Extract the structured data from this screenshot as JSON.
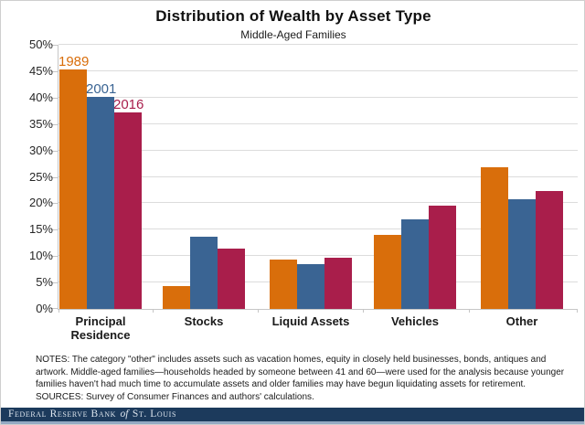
{
  "header": {
    "title": "Distribution of Wealth by Asset Type",
    "subtitle": "Middle-Aged Families"
  },
  "chart_data": {
    "type": "bar",
    "categories": [
      "Principal Residence",
      "Stocks",
      "Liquid Assets",
      "Vehicles",
      "Other"
    ],
    "series": [
      {
        "name": "1989",
        "color": "#d96e0b",
        "values": [
          45.4,
          4.4,
          9.3,
          14.1,
          26.8
        ]
      },
      {
        "name": "2001",
        "color": "#3a6493",
        "values": [
          40.1,
          13.6,
          8.4,
          17.0,
          20.8
        ]
      },
      {
        "name": "2016",
        "color": "#a91e4b",
        "values": [
          37.2,
          11.4,
          9.7,
          19.6,
          22.3
        ]
      }
    ],
    "title": "Distribution of Wealth by Asset Type",
    "subtitle": "Middle-Aged Families",
    "xlabel": "",
    "ylabel": "",
    "ylim": [
      0,
      50
    ],
    "ytick_step": 5,
    "ytick_suffix": "%",
    "grid": "horizontal",
    "legend_style": "year labels placed above bars of first group, colored to match series"
  },
  "notes": {
    "lines": [
      "NOTES: The category \"other\" includes assets such as vacation homes, equity in closely held businesses, bonds, antiques and",
      "artwork.  Middle-aged families—households headed by someone between 41 and 60—were used for the analysis because younger",
      "families haven't had much time to accumulate assets and older families may have begun liquidating assets for retirement.",
      "SOURCES: Survey of Consumer Finances and authors' calculations."
    ]
  },
  "footer": {
    "brand_part1": "Federal Reserve Bank",
    "brand_of": "of",
    "brand_part2": "St. Louis"
  }
}
